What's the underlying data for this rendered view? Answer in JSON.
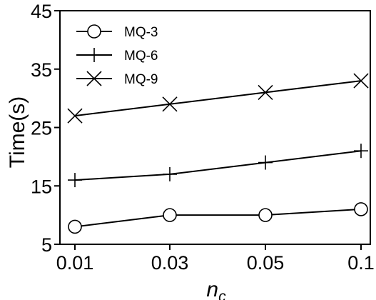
{
  "chart_data": {
    "type": "line",
    "title": "",
    "xlabel": "n",
    "xlabel_subscript": "c",
    "ylabel": "Time(s)",
    "categories": [
      "0.01",
      "0.03",
      "0.05",
      "0.1"
    ],
    "ylim": [
      5,
      45
    ],
    "yticks": [
      "5",
      "15",
      "25",
      "35",
      "45"
    ],
    "grid": false,
    "legend_position": "top-left",
    "series": [
      {
        "name": "MQ-3",
        "marker": "circle",
        "values": [
          8,
          10,
          10,
          11
        ]
      },
      {
        "name": "MQ-6",
        "marker": "plus",
        "values": [
          16,
          17,
          19,
          21
        ]
      },
      {
        "name": "MQ-9",
        "marker": "x",
        "values": [
          27,
          29,
          31,
          33
        ]
      }
    ],
    "colors": {
      "line": "#000000",
      "background": "#ffffff"
    }
  }
}
